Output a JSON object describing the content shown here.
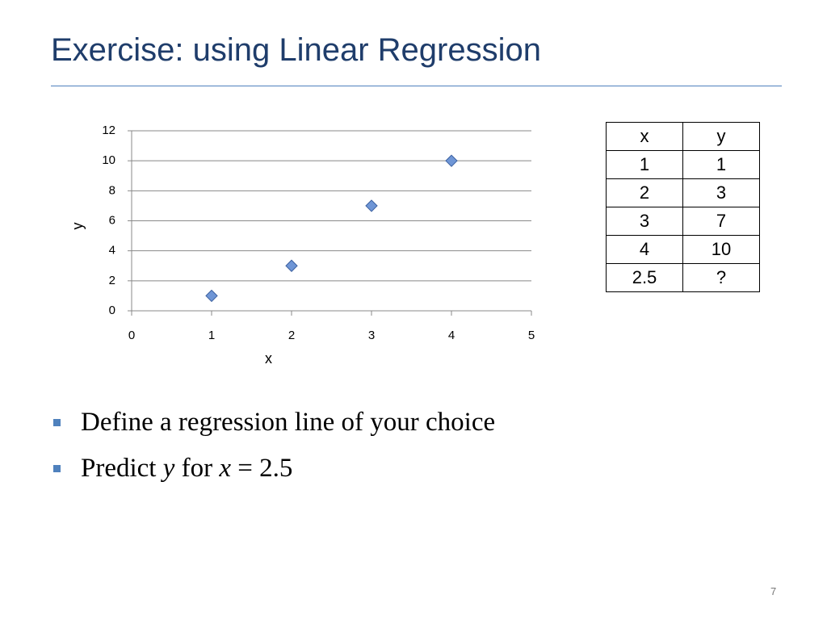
{
  "title": "Exercise: using Linear Regression",
  "chart_data": {
    "type": "scatter",
    "x": [
      1,
      2,
      3,
      4
    ],
    "series": [
      {
        "values": [
          1,
          3,
          7,
          10
        ],
        "color": "#6f96d6"
      }
    ],
    "xlim": [
      0,
      5
    ],
    "xticks": [
      0,
      1,
      2,
      3,
      4,
      5
    ],
    "ylim": [
      0,
      12
    ],
    "yticks": [
      0,
      2,
      4,
      6,
      8,
      10,
      12
    ],
    "xlabel": "x",
    "ylabel": "y",
    "grid": true
  },
  "table": {
    "header": [
      "x",
      "y"
    ],
    "rows": [
      [
        "1",
        "1"
      ],
      [
        "2",
        "3"
      ],
      [
        "3",
        "7"
      ],
      [
        "4",
        "10"
      ],
      [
        "2.5",
        "?"
      ]
    ]
  },
  "bullets": [
    [
      "Define a regression line of your choice"
    ],
    [
      "Predict ",
      "y",
      " for ",
      "x",
      " = 2.5"
    ]
  ],
  "page_number": "7"
}
